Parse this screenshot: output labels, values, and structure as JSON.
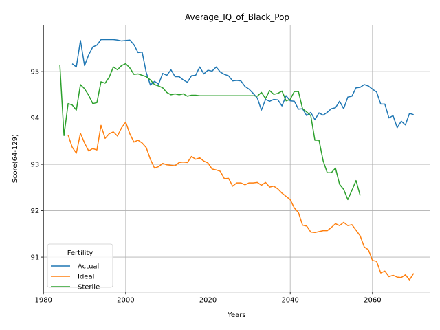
{
  "chart_data": {
    "type": "line",
    "title": "Average_IQ_of_Black_Pop",
    "xlabel": "Years",
    "ylabel": "Score(64-129)",
    "xlim": [
      1980,
      2074
    ],
    "ylim": [
      90.25,
      96.0
    ],
    "xticks": [
      1980,
      2000,
      2020,
      2040,
      2060
    ],
    "yticks": [
      91,
      92,
      93,
      94,
      95
    ],
    "grid": true,
    "legend": {
      "title": "Fertility",
      "placement": "lower-left"
    },
    "series": [
      {
        "name": "Actual",
        "color": "#1f77b4",
        "x": [
          1987,
          1988,
          1989,
          1990,
          1991,
          1992,
          1993,
          1994,
          1995,
          1996,
          1997,
          1998,
          1999,
          2000,
          2001,
          2002,
          2003,
          2004,
          2005,
          2006,
          2007,
          2008,
          2009,
          2010,
          2011,
          2012,
          2013,
          2014,
          2015,
          2016,
          2017,
          2018,
          2019,
          2020,
          2021,
          2022,
          2023,
          2024,
          2025,
          2026,
          2027,
          2028,
          2029,
          2030,
          2031,
          2032,
          2033,
          2034,
          2035,
          2036,
          2037,
          2038,
          2039,
          2040,
          2041,
          2042,
          2043,
          2044,
          2045,
          2046,
          2047,
          2048,
          2049,
          2050,
          2051,
          2052,
          2053,
          2054,
          2055,
          2056,
          2057,
          2058,
          2059,
          2060,
          2061,
          2062,
          2063,
          2064,
          2065,
          2066,
          2067,
          2068,
          2069,
          2070
        ],
        "values": [
          95.17,
          95.1,
          95.67,
          95.13,
          95.36,
          95.53,
          95.57,
          95.69,
          95.69,
          95.69,
          95.69,
          95.68,
          95.66,
          95.67,
          95.68,
          95.58,
          95.41,
          95.42,
          94.98,
          94.71,
          94.79,
          94.73,
          94.96,
          94.92,
          95.04,
          94.89,
          94.89,
          94.82,
          94.77,
          94.91,
          94.92,
          95.1,
          94.95,
          95.03,
          95.01,
          95.1,
          94.99,
          94.94,
          94.91,
          94.8,
          94.81,
          94.8,
          94.68,
          94.62,
          94.53,
          94.43,
          94.17,
          94.4,
          94.36,
          94.4,
          94.39,
          94.26,
          94.48,
          94.37,
          94.36,
          94.19,
          94.2,
          94.05,
          94.12,
          93.96,
          94.11,
          94.06,
          94.12,
          94.2,
          94.22,
          94.36,
          94.2,
          94.45,
          94.47,
          94.65,
          94.66,
          94.72,
          94.69,
          94.62,
          94.56,
          94.3,
          94.3,
          94.0,
          94.05,
          93.79,
          93.93,
          93.85,
          94.1,
          94.07
        ]
      },
      {
        "name": "Ideal",
        "color": "#ff7f0e",
        "x": [
          1986,
          1987,
          1988,
          1989,
          1990,
          1991,
          1992,
          1993,
          1994,
          1995,
          1996,
          1997,
          1998,
          1999,
          2000,
          2001,
          2002,
          2003,
          2004,
          2005,
          2006,
          2007,
          2008,
          2009,
          2010,
          2011,
          2012,
          2013,
          2014,
          2015,
          2016,
          2017,
          2018,
          2019,
          2020,
          2021,
          2022,
          2023,
          2024,
          2025,
          2026,
          2027,
          2028,
          2029,
          2030,
          2031,
          2032,
          2033,
          2034,
          2035,
          2036,
          2037,
          2038,
          2039,
          2040,
          2041,
          2042,
          2043,
          2044,
          2045,
          2046,
          2047,
          2048,
          2049,
          2050,
          2051,
          2052,
          2053,
          2054,
          2055,
          2056,
          2057,
          2058,
          2059,
          2060,
          2061,
          2062,
          2063,
          2064,
          2065,
          2066,
          2067,
          2068,
          2069,
          2070
        ],
        "values": [
          93.63,
          93.37,
          93.24,
          93.67,
          93.46,
          93.29,
          93.34,
          93.31,
          93.84,
          93.56,
          93.66,
          93.7,
          93.61,
          93.79,
          93.91,
          93.66,
          93.48,
          93.52,
          93.46,
          93.36,
          93.11,
          92.92,
          92.95,
          93.02,
          92.99,
          92.98,
          92.97,
          93.04,
          93.05,
          93.04,
          93.17,
          93.11,
          93.14,
          93.07,
          93.03,
          92.9,
          92.88,
          92.85,
          92.69,
          92.7,
          92.53,
          92.6,
          92.6,
          92.56,
          92.6,
          92.6,
          92.61,
          92.55,
          92.61,
          92.51,
          92.53,
          92.47,
          92.38,
          92.31,
          92.24,
          92.06,
          91.96,
          91.69,
          91.67,
          91.54,
          91.53,
          91.55,
          91.57,
          91.57,
          91.64,
          91.72,
          91.68,
          91.75,
          91.68,
          91.7,
          91.58,
          91.46,
          91.22,
          91.16,
          90.93,
          90.91,
          90.66,
          90.7,
          90.58,
          90.61,
          90.57,
          90.56,
          90.62,
          90.51,
          90.65
        ]
      },
      {
        "name": "Sterile",
        "color": "#2ca02c",
        "x": [
          1984,
          1985,
          1986,
          1987,
          1988,
          1989,
          1990,
          1991,
          1992,
          1993,
          1994,
          1995,
          1996,
          1997,
          1998,
          1999,
          2000,
          2001,
          2002,
          2003,
          2004,
          2005,
          2006,
          2007,
          2008,
          2009,
          2010,
          2011,
          2012,
          2013,
          2014,
          2015,
          2016,
          2017,
          2018,
          2019,
          2020,
          2021,
          2022,
          2023,
          2024,
          2025,
          2026,
          2027,
          2028,
          2029,
          2030,
          2031,
          2032,
          2033,
          2034,
          2035,
          2036,
          2037,
          2038,
          2039,
          2040,
          2041,
          2042,
          2043,
          2044,
          2045,
          2046,
          2047,
          2048,
          2049,
          2050,
          2051,
          2052,
          2053,
          2054,
          2055,
          2056,
          2057
        ],
        "values": [
          95.14,
          93.62,
          94.31,
          94.28,
          94.17,
          94.72,
          94.63,
          94.49,
          94.31,
          94.33,
          94.78,
          94.75,
          94.88,
          95.1,
          95.04,
          95.13,
          95.17,
          95.08,
          94.94,
          94.95,
          94.92,
          94.89,
          94.82,
          94.72,
          94.69,
          94.65,
          94.55,
          94.5,
          94.52,
          94.5,
          94.52,
          94.47,
          94.49,
          94.49,
          94.48,
          94.48,
          94.48,
          94.48,
          94.48,
          94.48,
          94.48,
          94.48,
          94.48,
          94.48,
          94.48,
          94.48,
          94.48,
          94.48,
          94.47,
          94.55,
          94.42,
          94.59,
          94.51,
          94.53,
          94.58,
          94.37,
          94.4,
          94.57,
          94.57,
          94.2,
          94.13,
          94.05,
          93.52,
          93.52,
          93.08,
          92.82,
          92.82,
          92.92,
          92.57,
          92.46,
          92.24,
          92.44,
          92.65,
          92.33
        ]
      }
    ]
  }
}
